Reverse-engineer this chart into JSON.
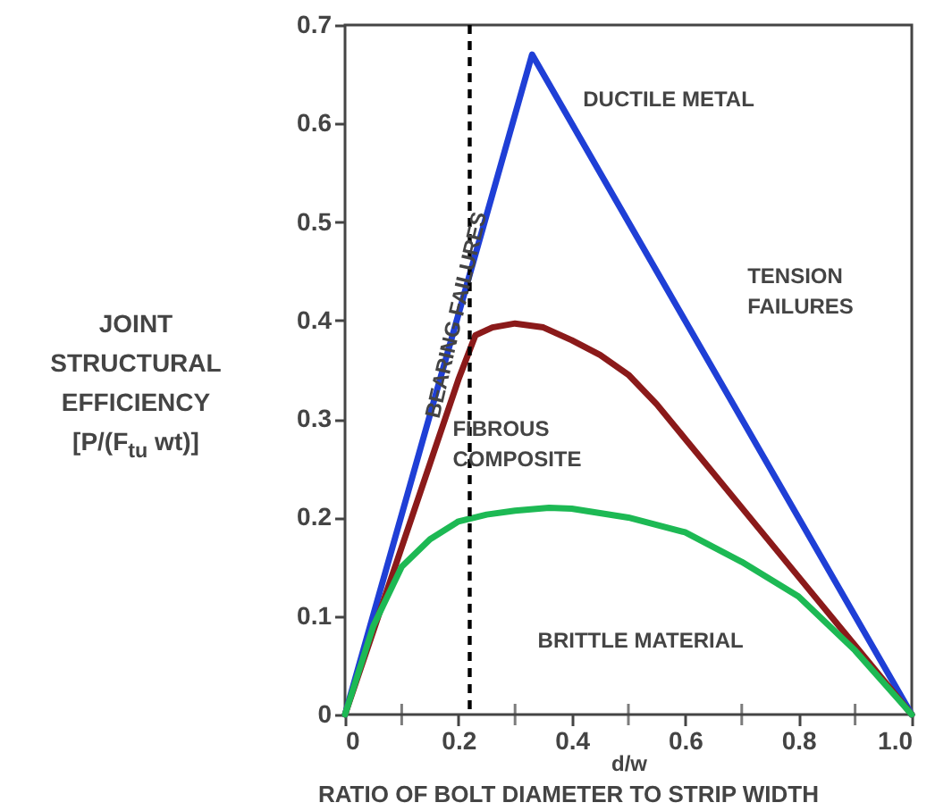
{
  "chart_data": {
    "type": "line",
    "xlabel": "d/w",
    "ylabel": "JOINT STRUCTURAL EFFICIENCY [P/(F$_{tu}$ wt)]",
    "annotations": [
      "TENSION FAILURES",
      "RATIO OF BOLT DIAMETER TO STRIP WIDTH"
    ],
    "xlim": [
      0,
      1
    ],
    "ylim": [
      0,
      0.7
    ],
    "xticks": [
      0,
      {
        "value": 0.1,
        "label": null
      },
      0.2,
      {
        "value": 0.3,
        "label": null
      },
      0.4,
      {
        "value": 0.5,
        "label": null
      },
      0.6,
      {
        "value": 0.7,
        "label": null
      },
      0.8,
      {
        "value": 0.9,
        "label": null
      },
      {
        "value": 1,
        "label": "1.0"
      }
    ],
    "yticks": [
      0,
      0.1,
      0.2,
      0.3,
      0.4,
      0.5,
      0.6,
      0.7
    ],
    "grid": false,
    "marker": "none",
    "line_style": "solid",
    "series": [
      {
        "name": "DUCTILE METAL",
        "color": "#1f3fd6",
        "x": [
          0,
          0.33,
          1
        ],
        "values": [
          0,
          0.67,
          0
        ]
      },
      {
        "name": "FIBROUS COMPOSITE",
        "color": "#8b1a1a",
        "x": [
          0,
          0.05,
          0.1,
          0.15,
          0.2,
          0.23,
          0.26,
          0.3,
          0.35,
          0.4,
          0.45,
          0.5,
          0.55,
          0.6,
          0.7,
          0.8,
          0.9,
          1
        ],
        "values": [
          0,
          0.085,
          0.17,
          0.255,
          0.34,
          0.385,
          0.393,
          0.397,
          0.393,
          0.38,
          0.365,
          0.345,
          0.315,
          0.28,
          0.21,
          0.14,
          0.07,
          0
        ]
      },
      {
        "name": "BRITTLE MATERIAL",
        "color": "#1db954",
        "x": [
          0,
          0.05,
          0.1,
          0.15,
          0.2,
          0.25,
          0.3,
          0.36,
          0.4,
          0.5,
          0.6,
          0.7,
          0.8,
          0.9,
          1
        ],
        "values": [
          0,
          0.09,
          0.15,
          0.178,
          0.196,
          0.203,
          0.207,
          0.21,
          0.209,
          0.2,
          0.185,
          0.155,
          0.12,
          0.065,
          0
        ]
      }
    ],
    "ref_lines": [
      {
        "axis": "x",
        "value": 0.22,
        "label": "BEARING FAILURES",
        "color": "#000000",
        "line_style": "dashed"
      }
    ]
  }
}
